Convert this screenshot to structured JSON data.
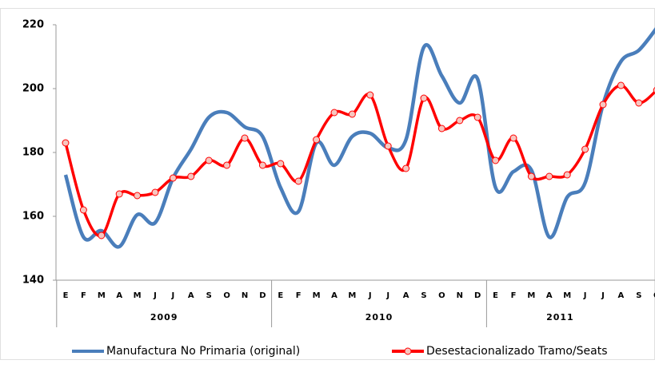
{
  "chart_data": {
    "type": "line",
    "groups": [
      {
        "label": "2009",
        "categories": [
          "E",
          "F",
          "M",
          "A",
          "M",
          "J",
          "J",
          "A",
          "S",
          "O",
          "N",
          "D"
        ]
      },
      {
        "label": "2010",
        "categories": [
          "E",
          "F",
          "M",
          "A",
          "M",
          "J",
          "J",
          "A",
          "S",
          "O",
          "N",
          "D"
        ]
      },
      {
        "label": "2011",
        "categories": [
          "E",
          "F",
          "M",
          "A",
          "M",
          "J",
          "J",
          "A",
          "S",
          "O"
        ]
      }
    ],
    "series": [
      {
        "name": "Manufactura No Primaria (original)",
        "color": "#4a7ebb",
        "markers": false,
        "values": [
          173,
          153.5,
          155.5,
          150.5,
          160.5,
          158,
          172,
          181,
          191,
          192.5,
          188,
          185,
          169,
          161.5,
          183,
          176,
          185,
          186,
          181.5,
          184,
          213,
          204,
          195.5,
          203,
          169,
          174,
          174.5,
          153.5,
          166,
          170.5,
          195,
          208.5,
          212,
          219
        ]
      },
      {
        "name": "Desestacionalizado Tramo/Seats",
        "color": "#ff0000",
        "markers": true,
        "values": [
          183,
          162,
          154,
          167,
          166.5,
          167.5,
          172,
          172.5,
          177.5,
          176,
          184.5,
          176,
          176.5,
          171,
          184,
          192.5,
          192,
          198,
          182,
          175,
          197,
          187.5,
          190,
          191,
          177.5,
          184.5,
          172.5,
          172.5,
          173,
          181,
          195,
          201,
          195.5,
          199.5
        ]
      }
    ],
    "ylim": [
      140,
      220
    ],
    "yticks": [
      140,
      160,
      180,
      200,
      220
    ],
    "grid": false,
    "legend": "bottom"
  }
}
